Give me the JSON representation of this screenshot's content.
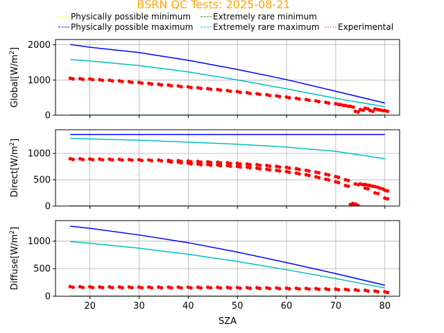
{
  "chart_data": {
    "type": "scatter",
    "title": "BSRN QC Tests: 2025-08-21",
    "xlabel": "SZA",
    "xlim": [
      13,
      83
    ],
    "x_ticks": [
      20,
      30,
      40,
      50,
      60,
      70,
      80
    ],
    "grid": true,
    "legend_placement": "top",
    "legend": [
      {
        "label": "Physically possible minimum",
        "color": "#ffff00",
        "style": "dashed"
      },
      {
        "label": "Physically possible maximum",
        "color": "#0000ff",
        "style": "dashed"
      },
      {
        "label": "Extremely rare minimum",
        "color": "#008000",
        "style": "dashed"
      },
      {
        "label": "Extremely rare maximum",
        "color": "#00bfbf",
        "style": "dashed"
      },
      {
        "label": "Experimental",
        "color": "#ff0000",
        "style": "dotted"
      }
    ],
    "panels": [
      {
        "ylabel": "Global[W/m",
        "ylabel_sup": "2",
        "ylabel_end": "]",
        "ylim": [
          0,
          2150
        ],
        "y_ticks": [
          0,
          1000,
          2000
        ],
        "series": [
          {
            "name": "Physically possible minimum",
            "color": "#ffff00",
            "kind": "line",
            "x": [
              16,
              80
            ],
            "y": [
              -4,
              -4
            ]
          },
          {
            "name": "Extremely rare minimum",
            "color": "#008000",
            "kind": "line",
            "x": [
              16,
              80
            ],
            "y": [
              0,
              0
            ]
          },
          {
            "name": "Physically possible maximum",
            "color": "#0000ff",
            "kind": "line",
            "x": [
              16,
              20,
              30,
              40,
              50,
              60,
              70,
              80
            ],
            "y": [
              2010,
              1930,
              1780,
              1560,
              1300,
              1010,
              680,
              345
            ]
          },
          {
            "name": "Extremely rare maximum",
            "color": "#00bfbf",
            "kind": "line",
            "x": [
              16,
              20,
              30,
              40,
              50,
              60,
              70,
              80
            ],
            "y": [
              1580,
              1540,
              1410,
              1230,
              1000,
              750,
              480,
              240
            ]
          },
          {
            "name": "Experimental",
            "color": "#ff0000",
            "kind": "scatter",
            "x": [
              16,
              18,
              20,
              22,
              24,
              26,
              28,
              30,
              32,
              34,
              36,
              38,
              40,
              42,
              44,
              46,
              48,
              50,
              52,
              54,
              56,
              58,
              60,
              62,
              64,
              66,
              68,
              70,
              71,
              72,
              73,
              74,
              75,
              76,
              77,
              78,
              79,
              80
            ],
            "y": [
              1050,
              1040,
              1030,
              1010,
              995,
              975,
              950,
              930,
              905,
              880,
              855,
              830,
              805,
              780,
              755,
              730,
              700,
              670,
              640,
              610,
              580,
              550,
              515,
              480,
              445,
              405,
              365,
              325,
              300,
              275,
              250,
              110,
              160,
              200,
              130,
              180,
              150,
              130
            ]
          }
        ]
      },
      {
        "ylabel": "Direct[W/m",
        "ylabel_sup": "2",
        "ylabel_end": "]",
        "ylim": [
          0,
          1450
        ],
        "y_ticks": [
          0,
          500,
          1000
        ],
        "series": [
          {
            "name": "Physically possible minimum",
            "color": "#ffff00",
            "kind": "line",
            "x": [
              16,
              80
            ],
            "y": [
              -4,
              -4
            ]
          },
          {
            "name": "Extremely rare minimum",
            "color": "#008000",
            "kind": "line",
            "x": [
              16,
              80
            ],
            "y": [
              0,
              0
            ]
          },
          {
            "name": "Physically possible maximum",
            "color": "#0000ff",
            "kind": "line",
            "x": [
              16,
              80
            ],
            "y": [
              1360,
              1360
            ]
          },
          {
            "name": "Extremely rare maximum",
            "color": "#00bfbf",
            "kind": "line",
            "x": [
              16,
              20,
              30,
              40,
              50,
              60,
              70,
              80
            ],
            "y": [
              1285,
              1275,
              1250,
              1215,
              1175,
              1120,
              1040,
              900
            ]
          },
          {
            "name": "Experimental",
            "color": "#ff0000",
            "kind": "scatter",
            "x": [
              16,
              18,
              20,
              22,
              24,
              26,
              28,
              30,
              32,
              34,
              36,
              38,
              40,
              42,
              44,
              46,
              48,
              50,
              52,
              54,
              56,
              58,
              60,
              62,
              64,
              66,
              68,
              70,
              72,
              74,
              76,
              78,
              80,
              36,
              38,
              40,
              42,
              44,
              46,
              48,
              50,
              52,
              54,
              56,
              58,
              60,
              62,
              64,
              66,
              68,
              70,
              72,
              73,
              73.5,
              74,
              75,
              76,
              77,
              78,
              79,
              80
            ],
            "y": [
              900,
              898,
              895,
              892,
              890,
              887,
              884,
              880,
              876,
              872,
              868,
              862,
              855,
              848,
              840,
              832,
              823,
              812,
              800,
              787,
              772,
              755,
              735,
              710,
              680,
              645,
              605,
              560,
              500,
              420,
              340,
              250,
              150,
              850,
              835,
              815,
              800,
              790,
              780,
              770,
              755,
              740,
              720,
              700,
              680,
              655,
              625,
              595,
              555,
              510,
              460,
              390,
              30,
              50,
              20,
              420,
              410,
              390,
              370,
              340,
              300
            ]
          }
        ]
      },
      {
        "ylabel": "Diffuse[W/m",
        "ylabel_sup": "2",
        "ylabel_end": "]",
        "ylim": [
          0,
          1370
        ],
        "y_ticks": [
          0,
          500,
          1000
        ],
        "series": [
          {
            "name": "Physically possible minimum",
            "color": "#ffff00",
            "kind": "line",
            "x": [
              16,
              80
            ],
            "y": [
              -4,
              -4
            ]
          },
          {
            "name": "Extremely rare minimum",
            "color": "#008000",
            "kind": "line",
            "x": [
              16,
              80
            ],
            "y": [
              0,
              0
            ]
          },
          {
            "name": "Physically possible maximum",
            "color": "#0000ff",
            "kind": "line",
            "x": [
              16,
              20,
              30,
              40,
              50,
              60,
              70,
              80
            ],
            "y": [
              1270,
              1230,
              1110,
              970,
              800,
              610,
              410,
              200
            ]
          },
          {
            "name": "Extremely rare maximum",
            "color": "#00bfbf",
            "kind": "line",
            "x": [
              16,
              20,
              30,
              40,
              50,
              60,
              70,
              80
            ],
            "y": [
              990,
              960,
              870,
              760,
              630,
              480,
              320,
              150
            ]
          },
          {
            "name": "Experimental",
            "color": "#ff0000",
            "kind": "scatter",
            "x": [
              16,
              18,
              20,
              22,
              24,
              26,
              28,
              30,
              32,
              34,
              36,
              38,
              40,
              42,
              44,
              46,
              48,
              50,
              52,
              54,
              56,
              58,
              60,
              62,
              64,
              66,
              68,
              70,
              72,
              74,
              76,
              78,
              80
            ],
            "y": [
              175,
              172,
              170,
              168,
              168,
              167,
              167,
              166,
              166,
              165,
              165,
              164,
              164,
              163,
              163,
              162,
              160,
              158,
              156,
              154,
              152,
              150,
              148,
              145,
              142,
              138,
              134,
              130,
              125,
              118,
              108,
              95,
              80
            ]
          }
        ]
      }
    ]
  }
}
